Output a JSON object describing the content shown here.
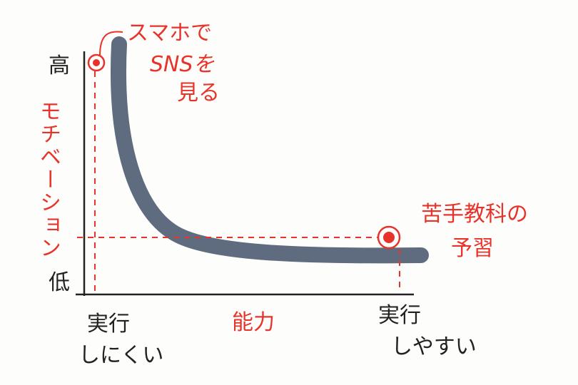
{
  "y_axis": {
    "label": "モチベーション",
    "high": "高",
    "low": "低"
  },
  "x_axis": {
    "label": "能力",
    "left": [
      "実行",
      "しにくい"
    ],
    "right": [
      "実行",
      "しやすい"
    ]
  },
  "points": [
    {
      "label": [
        "スマホで",
        "SNSを",
        "見る"
      ]
    },
    {
      "label": [
        "苦手教科の",
        "予習"
      ]
    }
  ]
}
